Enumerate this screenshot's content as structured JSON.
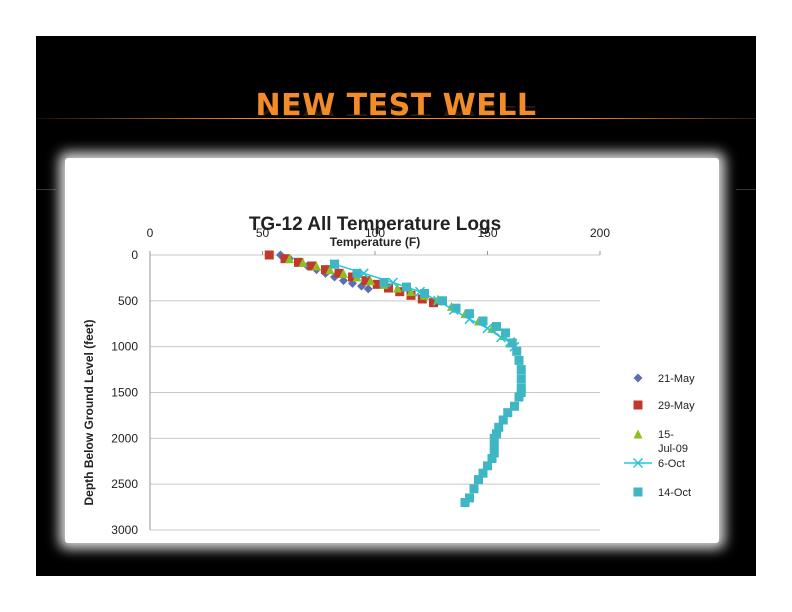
{
  "slide": {
    "title": "NEW TEST WELL"
  },
  "colors": {
    "slide_background": "#000000",
    "title": "#f28c28",
    "series_21_may": "#5b6fb0",
    "series_29_may": "#c0392b",
    "series_15_jul": "#8fbf1f",
    "series_6_oct": "#26c6d8",
    "series_14_oct": "#3fb6c3"
  },
  "chart_data": {
    "type": "scatter",
    "title": "TG-12 All Temperature Logs",
    "xlabel": "Temperature (F)",
    "ylabel": "Depth Below Ground Level (feet)",
    "xlim": [
      0,
      200
    ],
    "ylim": [
      0,
      3000
    ],
    "y_inverted": true,
    "x_axis_position": "top",
    "x_ticks": [
      0,
      50,
      100,
      150,
      200
    ],
    "y_ticks": [
      0,
      500,
      1000,
      1500,
      2000,
      2500,
      3000
    ],
    "grid": true,
    "legend_position": "right",
    "series": [
      {
        "name": "21-May",
        "marker": "diamond",
        "color": "#5b6fb0",
        "line": false,
        "x": [
          58,
          62,
          66,
          70,
          74,
          78,
          82,
          86,
          90,
          94,
          97
        ],
        "y": [
          0,
          40,
          80,
          120,
          160,
          200,
          240,
          280,
          310,
          340,
          370
        ]
      },
      {
        "name": "29-May",
        "marker": "square",
        "color": "#c0392b",
        "line": false,
        "x": [
          53,
          60,
          66,
          72,
          78,
          84,
          90,
          96,
          101,
          106,
          111,
          116,
          121,
          126
        ],
        "y": [
          0,
          40,
          80,
          120,
          160,
          200,
          240,
          280,
          320,
          360,
          400,
          440,
          480,
          520
        ]
      },
      {
        "name": "15-Jul-09",
        "marker": "triangle",
        "color": "#8fbf1f",
        "line": false,
        "x": [
          62,
          68,
          74,
          80,
          86,
          92,
          98,
          104,
          110,
          116,
          122,
          128,
          134,
          140,
          146,
          152,
          157,
          160
        ],
        "y": [
          40,
          80,
          120,
          160,
          200,
          240,
          280,
          320,
          360,
          400,
          440,
          480,
          560,
          640,
          720,
          800,
          880,
          960
        ]
      },
      {
        "name": "6-Oct",
        "marker": "x",
        "color": "#26c6d8",
        "line": true,
        "x": [
          82,
          95,
          108,
          120,
          128,
          135,
          142,
          150,
          156,
          160,
          162
        ],
        "y": [
          100,
          200,
          300,
          400,
          500,
          600,
          700,
          800,
          900,
          950,
          1000
        ]
      },
      {
        "name": "14-Oct",
        "marker": "square",
        "color": "#3fb6c3",
        "line": false,
        "x": [
          82,
          92,
          104,
          114,
          122,
          130,
          136,
          142,
          148,
          154,
          158,
          161,
          163,
          164,
          165,
          165,
          165,
          165,
          164,
          162,
          159,
          157,
          155,
          154,
          153,
          153,
          153,
          152,
          150,
          148,
          146,
          144,
          142,
          140
        ],
        "y": [
          100,
          200,
          300,
          350,
          420,
          500,
          580,
          640,
          720,
          780,
          850,
          960,
          1050,
          1150,
          1250,
          1350,
          1450,
          1500,
          1550,
          1650,
          1720,
          1800,
          1880,
          1950,
          2000,
          2080,
          2160,
          2220,
          2300,
          2380,
          2450,
          2550,
          2650,
          2700
        ]
      }
    ]
  }
}
